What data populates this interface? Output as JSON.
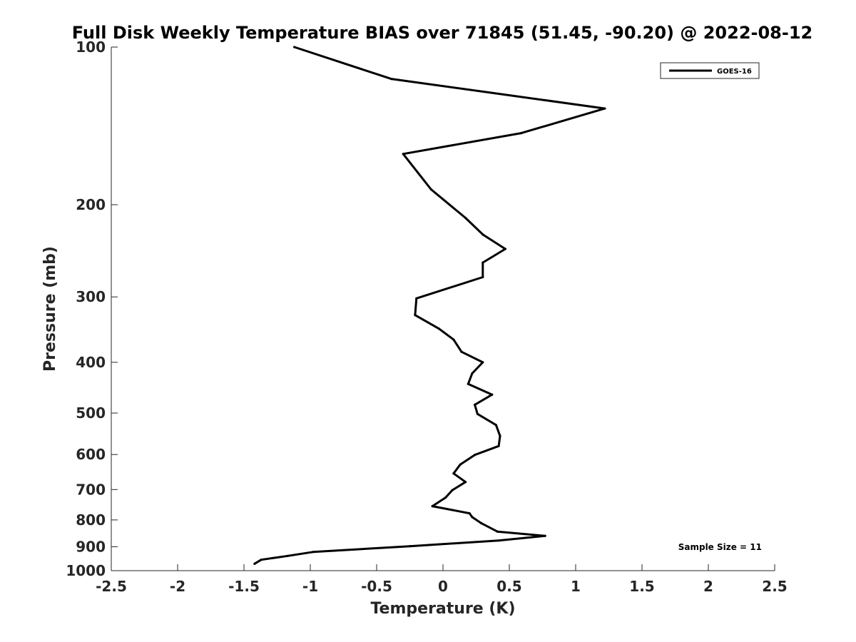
{
  "chart_data": {
    "type": "line",
    "title": "Full Disk Weekly Temperature BIAS over 71845 (51.45, -90.20) @ 2022-08-12",
    "xlabel": "Temperature (K)",
    "ylabel": "Pressure (mb)",
    "xlim": [
      -2.5,
      2.5
    ],
    "ylim": [
      100,
      1000
    ],
    "y_scale": "log",
    "y_direction": "reversed",
    "x_ticks": [
      "-2.5",
      "-2",
      "-1.5",
      "-1",
      "-0.5",
      "0",
      "0.5",
      "1",
      "1.5",
      "2",
      "2.5"
    ],
    "y_ticks": [
      "100",
      "200",
      "300",
      "400",
      "500",
      "600",
      "700",
      "800",
      "900",
      "1000"
    ],
    "grid": false,
    "legend_position": "top-right",
    "annotation": "Sample Size = 11",
    "series": [
      {
        "name": "GOES-16",
        "color": "#000000",
        "points": [
          {
            "x": -1.12,
            "p": 100
          },
          {
            "x": -0.39,
            "p": 115
          },
          {
            "x": 1.22,
            "p": 131
          },
          {
            "x": 0.59,
            "p": 146
          },
          {
            "x": -0.3,
            "p": 160
          },
          {
            "x": -0.09,
            "p": 187
          },
          {
            "x": 0.17,
            "p": 212
          },
          {
            "x": 0.3,
            "p": 228
          },
          {
            "x": 0.47,
            "p": 243
          },
          {
            "x": 0.3,
            "p": 258
          },
          {
            "x": 0.3,
            "p": 275
          },
          {
            "x": -0.2,
            "p": 302
          },
          {
            "x": -0.21,
            "p": 325
          },
          {
            "x": -0.03,
            "p": 345
          },
          {
            "x": 0.08,
            "p": 362
          },
          {
            "x": 0.14,
            "p": 382
          },
          {
            "x": 0.3,
            "p": 400
          },
          {
            "x": 0.22,
            "p": 420
          },
          {
            "x": 0.19,
            "p": 440
          },
          {
            "x": 0.37,
            "p": 461
          },
          {
            "x": 0.24,
            "p": 482
          },
          {
            "x": 0.26,
            "p": 502
          },
          {
            "x": 0.4,
            "p": 527
          },
          {
            "x": 0.43,
            "p": 553
          },
          {
            "x": 0.42,
            "p": 578
          },
          {
            "x": 0.24,
            "p": 601
          },
          {
            "x": 0.13,
            "p": 627
          },
          {
            "x": 0.08,
            "p": 652
          },
          {
            "x": 0.17,
            "p": 677
          },
          {
            "x": 0.07,
            "p": 702
          },
          {
            "x": 0.02,
            "p": 725
          },
          {
            "x": -0.08,
            "p": 753
          },
          {
            "x": 0.2,
            "p": 777
          },
          {
            "x": 0.22,
            "p": 790
          },
          {
            "x": 0.29,
            "p": 812
          },
          {
            "x": 0.41,
            "p": 842
          },
          {
            "x": 0.77,
            "p": 858
          },
          {
            "x": 0.42,
            "p": 876
          },
          {
            "x": -0.25,
            "p": 898
          },
          {
            "x": -0.98,
            "p": 921
          },
          {
            "x": -1.17,
            "p": 937
          },
          {
            "x": -1.37,
            "p": 953
          },
          {
            "x": -1.42,
            "p": 970
          }
        ]
      }
    ]
  }
}
